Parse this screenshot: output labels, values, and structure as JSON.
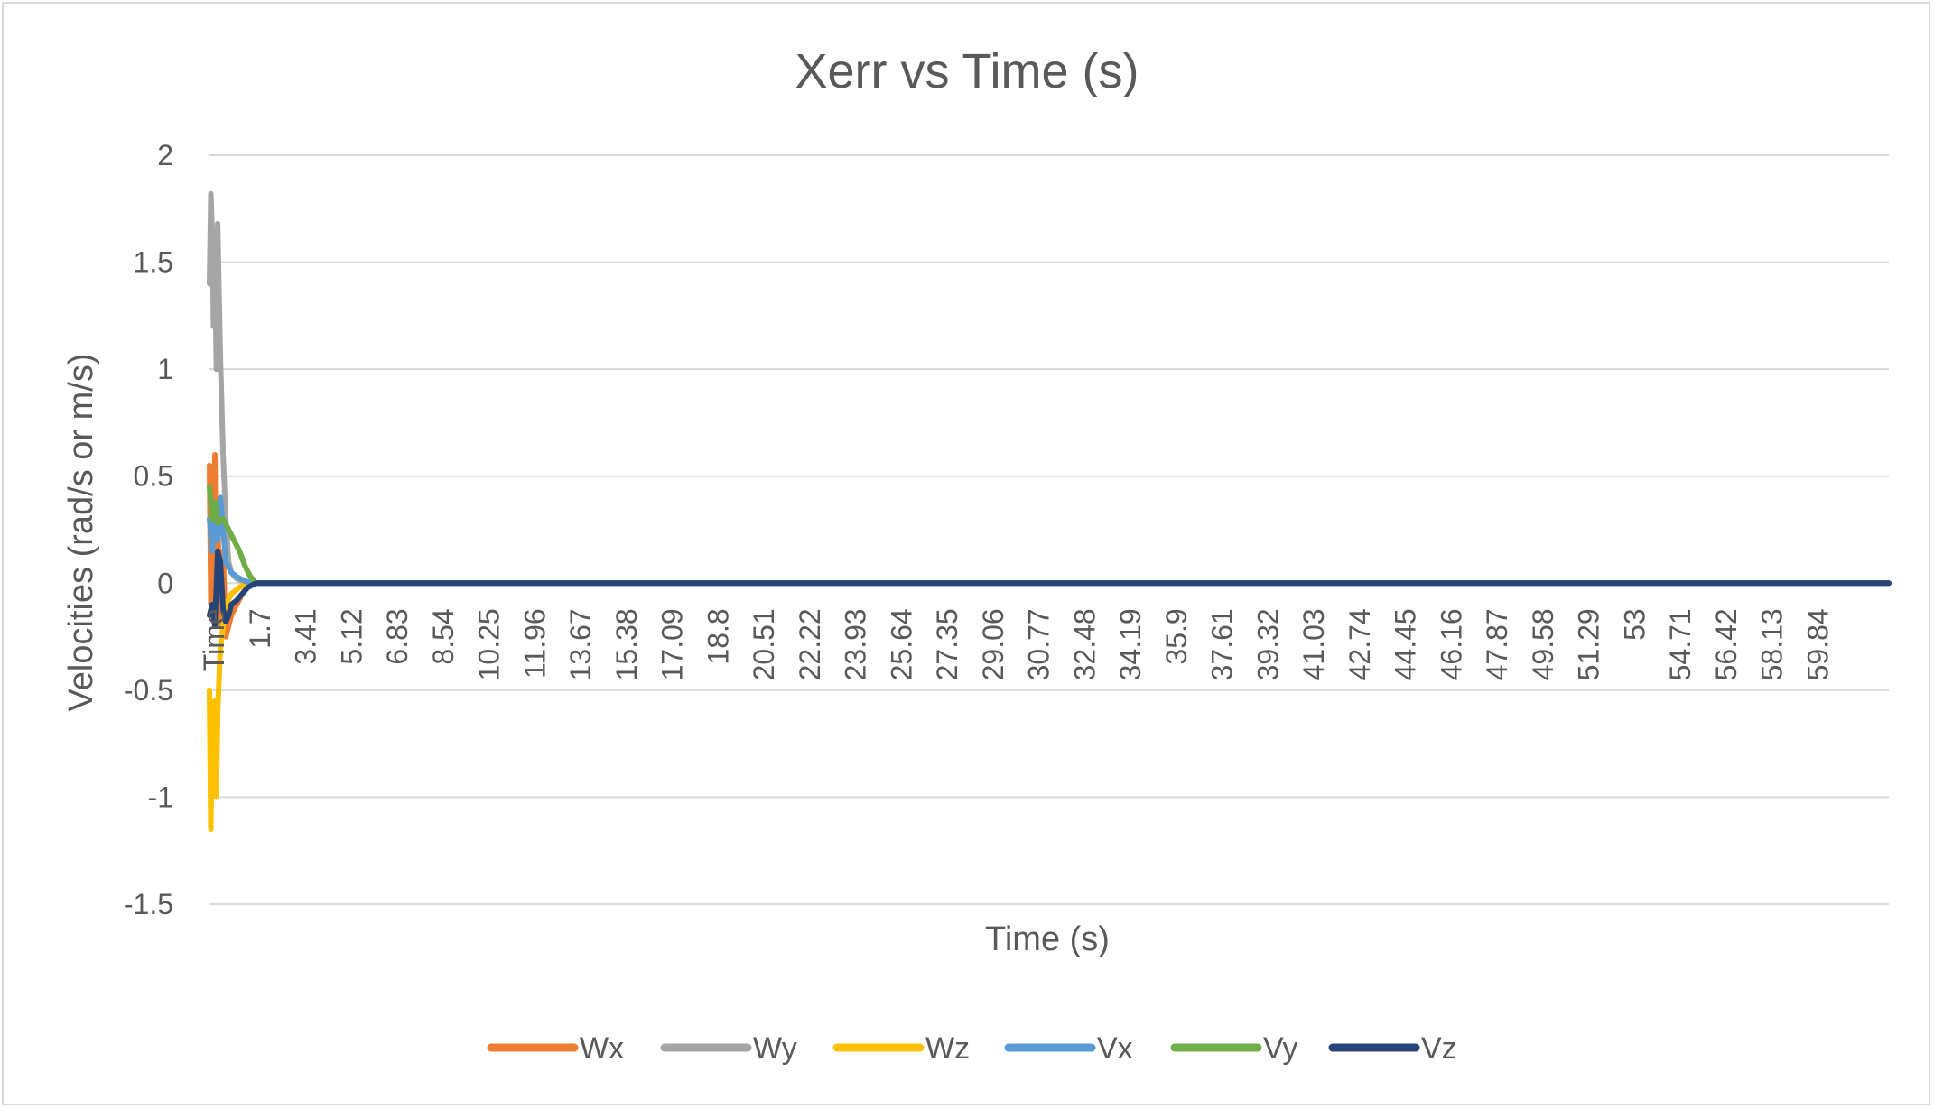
{
  "chart_data": {
    "type": "line",
    "title": "Xerr vs Time (s)",
    "xlabel": "Time (s)",
    "ylabel": "Velocities (rad/s or m/s)",
    "ylim": [
      -1.5,
      2
    ],
    "yticks": [
      "2",
      "1.5",
      "1",
      "0.5",
      "0",
      "-0.5",
      "-1",
      "-1.5"
    ],
    "grid": true,
    "legend_position": "bottom",
    "x_tick_labels": [
      "Time",
      "1.7",
      "3.41",
      "5.12",
      "6.83",
      "8.54",
      "10.25",
      "11.96",
      "13.67",
      "15.38",
      "17.09",
      "18.8",
      "20.51",
      "22.22",
      "23.93",
      "25.64",
      "27.35",
      "29.06",
      "30.77",
      "32.48",
      "34.19",
      "35.9",
      "37.61",
      "39.32",
      "41.03",
      "42.74",
      "44.45",
      "46.16",
      "47.87",
      "49.58",
      "51.29",
      "53",
      "54.71",
      "56.42",
      "58.13",
      "59.84"
    ],
    "xlim": [
      0,
      61.5
    ],
    "series": [
      {
        "name": "Wx",
        "color": "#ED7D31",
        "x": [
          0,
          0.05,
          0.1,
          0.15,
          0.2,
          0.25,
          0.3,
          0.4,
          0.5,
          0.6,
          0.8,
          1.0,
          1.2,
          1.4,
          1.7,
          61.5
        ],
        "y": [
          0.55,
          -0.1,
          0.45,
          0.2,
          0.6,
          -0.05,
          0.3,
          -0.2,
          0.15,
          -0.25,
          -0.15,
          -0.1,
          -0.05,
          -0.02,
          0,
          0
        ]
      },
      {
        "name": "Wy",
        "color": "#A5A5A5",
        "x": [
          0,
          0.05,
          0.1,
          0.15,
          0.2,
          0.25,
          0.3,
          0.4,
          0.5,
          0.6,
          0.7,
          0.8,
          1.0,
          1.2,
          1.4,
          1.7,
          61.5
        ],
        "y": [
          1.4,
          1.82,
          1.65,
          1.2,
          1.55,
          1.0,
          1.68,
          1.05,
          0.6,
          0.3,
          0.1,
          0.05,
          0.02,
          0.01,
          0,
          0,
          0
        ]
      },
      {
        "name": "Wz",
        "color": "#FFC000",
        "x": [
          0,
          0.05,
          0.1,
          0.15,
          0.2,
          0.25,
          0.3,
          0.4,
          0.5,
          0.6,
          0.8,
          1.0,
          1.2,
          1.4,
          1.7,
          61.5
        ],
        "y": [
          -0.5,
          -1.15,
          -0.7,
          -0.95,
          -0.55,
          -1.0,
          -0.6,
          -0.3,
          -0.2,
          -0.1,
          -0.05,
          -0.03,
          -0.01,
          0,
          0,
          0
        ]
      },
      {
        "name": "Vx",
        "color": "#5B9BD5",
        "x": [
          0,
          0.1,
          0.2,
          0.3,
          0.4,
          0.5,
          0.6,
          0.8,
          1.0,
          1.3,
          1.7,
          61.5
        ],
        "y": [
          0.3,
          0.15,
          0.35,
          0.2,
          0.4,
          0.25,
          0.1,
          0.05,
          0.03,
          0.01,
          0,
          0
        ]
      },
      {
        "name": "Vy",
        "color": "#70AD47",
        "x": [
          0,
          0.1,
          0.2,
          0.3,
          0.5,
          0.7,
          0.9,
          1.1,
          1.3,
          1.5,
          1.7,
          61.5
        ],
        "y": [
          0.45,
          0.3,
          0.38,
          0.28,
          0.3,
          0.25,
          0.2,
          0.15,
          0.08,
          0.03,
          0,
          0
        ]
      },
      {
        "name": "Vz",
        "color": "#264478",
        "x": [
          0,
          0.1,
          0.2,
          0.3,
          0.4,
          0.5,
          0.6,
          0.7,
          0.8,
          1.0,
          1.2,
          1.4,
          1.7,
          61.5
        ],
        "y": [
          -0.15,
          -0.1,
          -0.2,
          0.15,
          0.1,
          -0.12,
          -0.18,
          -0.15,
          -0.1,
          -0.08,
          -0.05,
          -0.02,
          0,
          0
        ]
      }
    ]
  }
}
